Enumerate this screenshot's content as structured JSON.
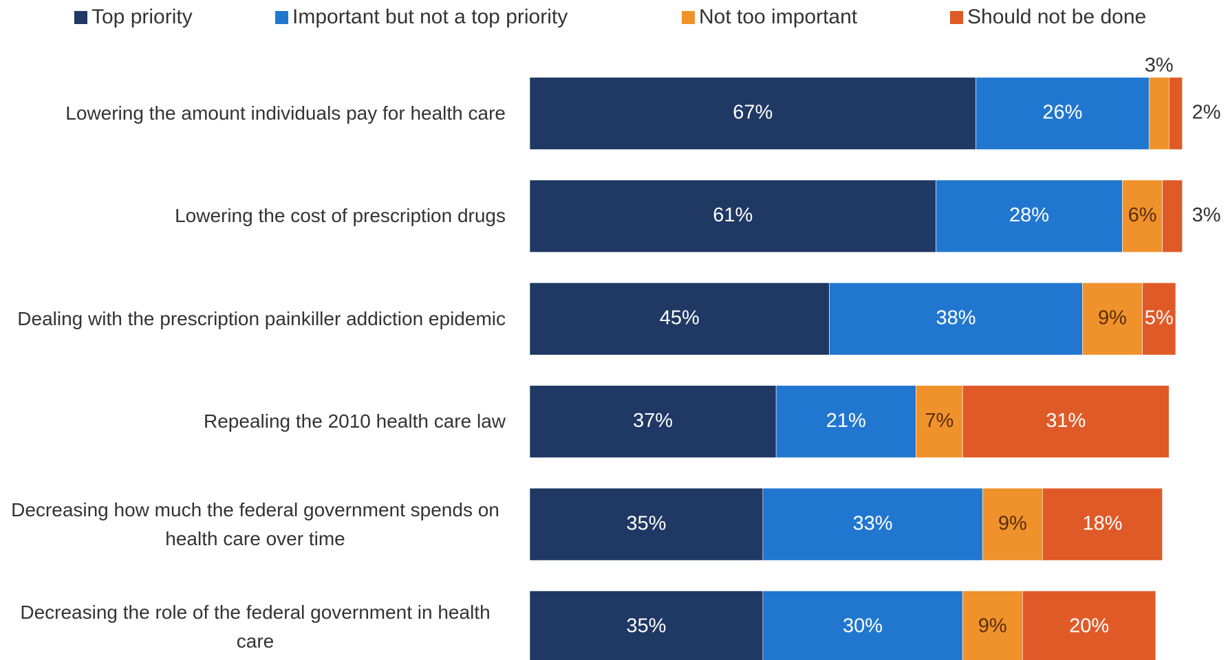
{
  "chart_data": {
    "type": "stacked-bar-horizontal",
    "categories": [
      "Lowering the amount individuals pay for health care",
      "Lowering the cost of prescription drugs",
      "Dealing with the prescription painkiller addiction epidemic",
      "Repealing the 2010 health care law",
      "Decreasing how much the federal government spends on health care over time",
      "Decreasing the role of the federal government in health care"
    ],
    "series": [
      {
        "name": "Top priority",
        "color": "#1f3864",
        "values": [
          67,
          61,
          45,
          37,
          35,
          35
        ],
        "value_labels": [
          "67%",
          "61%",
          "45%",
          "37%",
          "35%",
          "35%"
        ]
      },
      {
        "name": "Important but not a top priority",
        "color": "#2177cf",
        "values": [
          26,
          28,
          38,
          21,
          33,
          30
        ],
        "value_labels": [
          "26%",
          "28%",
          "38%",
          "21%",
          "33%",
          "30%"
        ]
      },
      {
        "name": "Not too important",
        "color": "#f0922b",
        "values": [
          3,
          6,
          9,
          7,
          9,
          9
        ],
        "value_labels": [
          "3%",
          "6%",
          "9%",
          "7%",
          "9%",
          "9%"
        ]
      },
      {
        "name": "Should not be done",
        "color": "#e05a28",
        "values": [
          2,
          3,
          5,
          31,
          18,
          20
        ],
        "value_labels": [
          "2%",
          "3%",
          "5%",
          "31%",
          "18%",
          "20%"
        ]
      }
    ],
    "legend": "top"
  }
}
